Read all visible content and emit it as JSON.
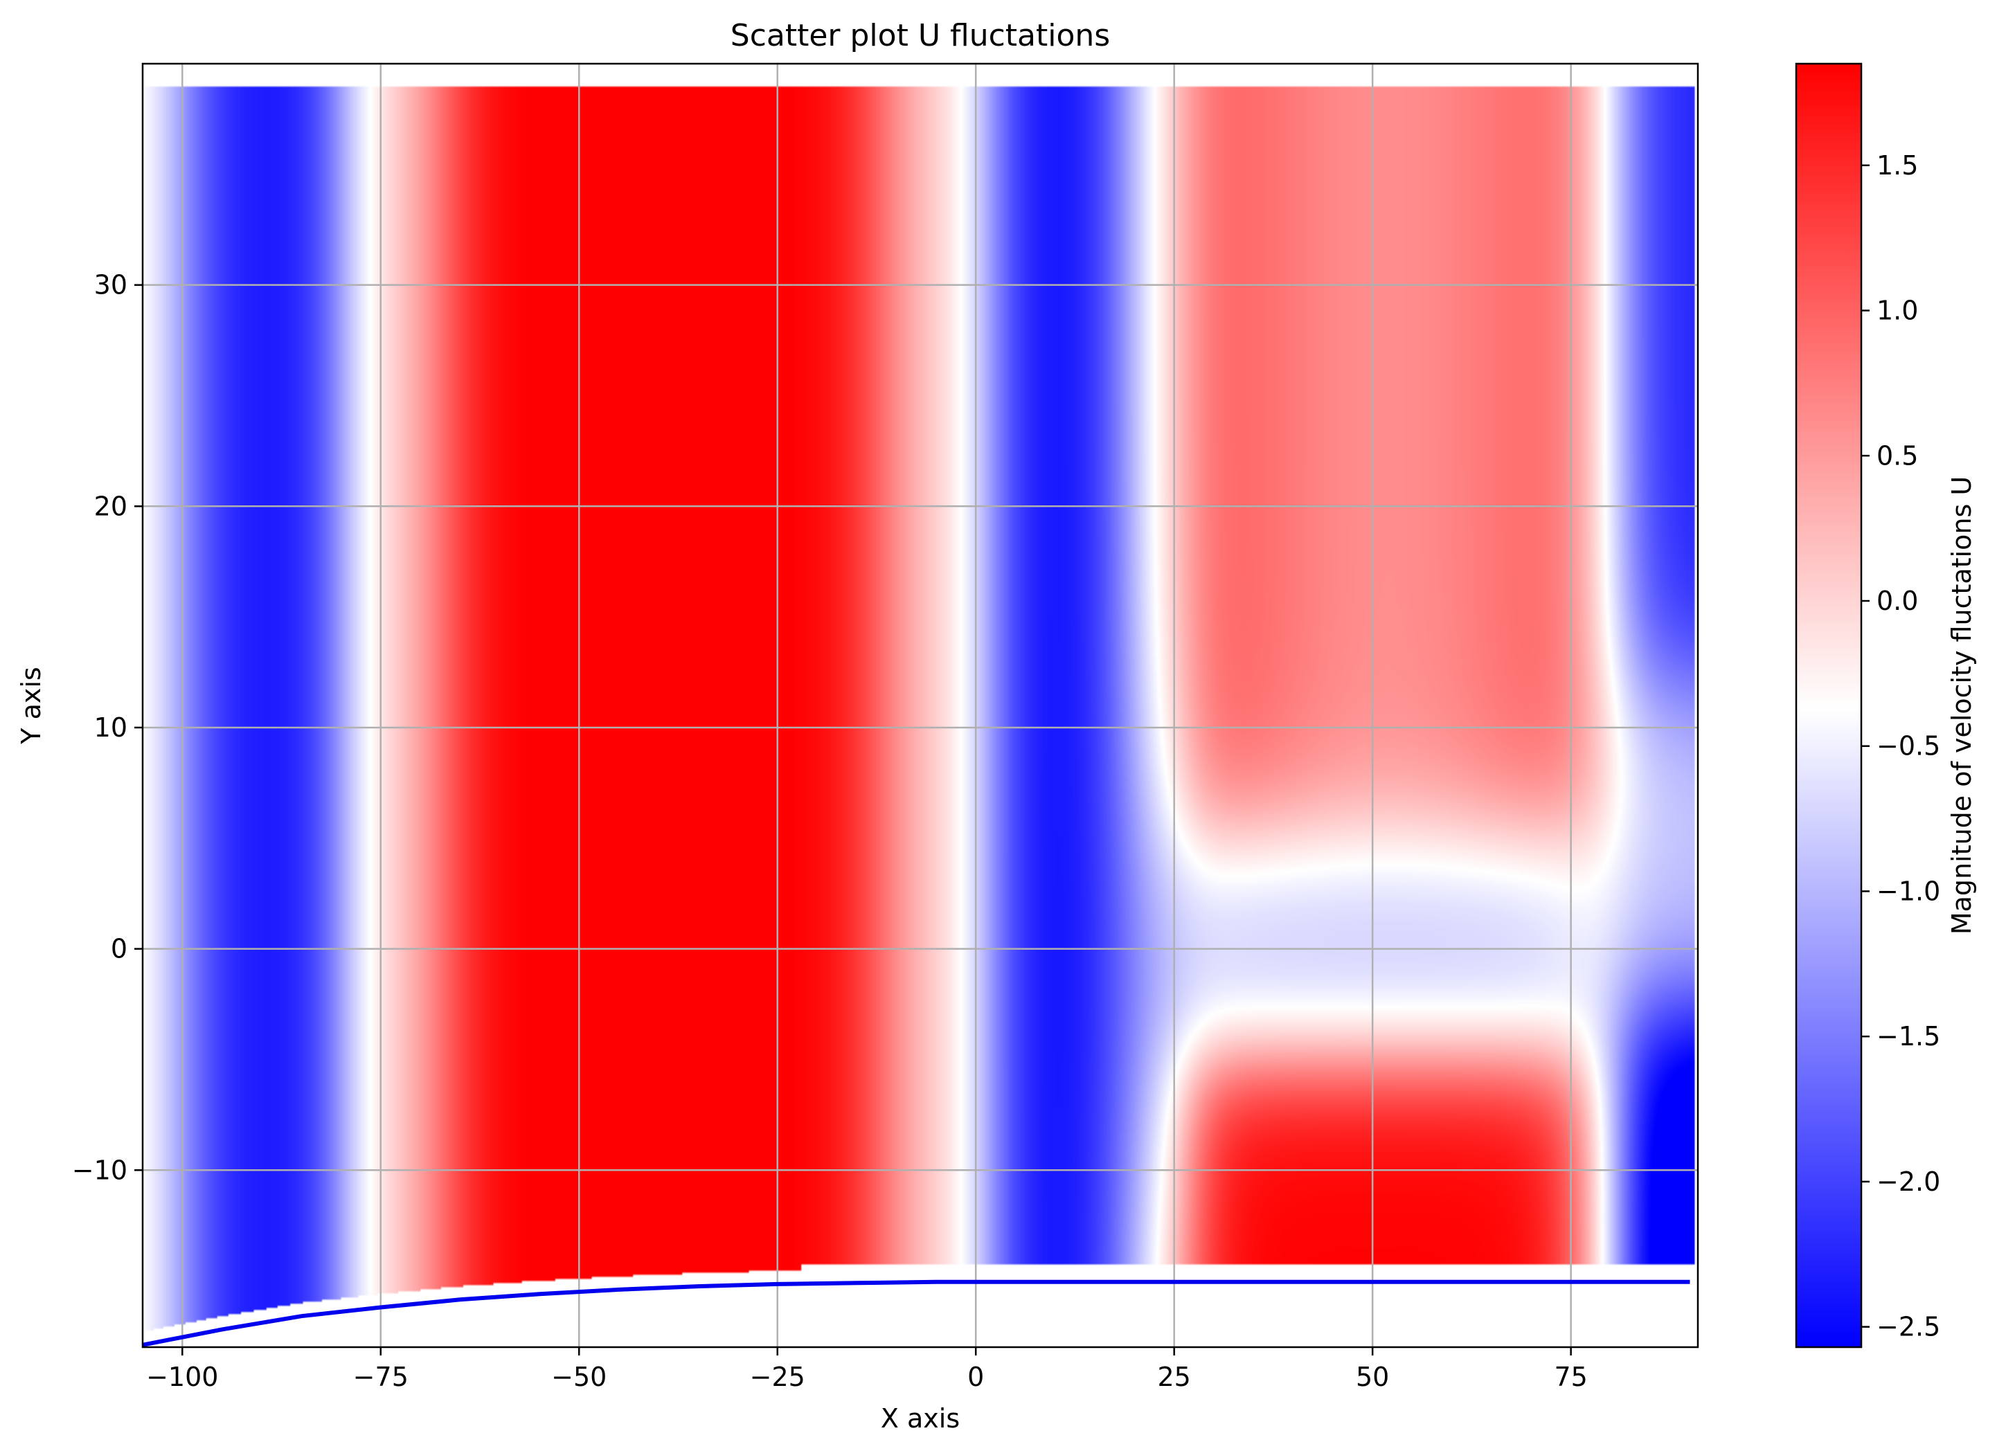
{
  "chart_data": {
    "type": "heatmap",
    "title": "Scatter plot U fluctations",
    "xlabel": "X axis",
    "ylabel": "Y axis",
    "xlim": [
      -105,
      91
    ],
    "ylim": [
      -18,
      40
    ],
    "x_ticks": [
      -100,
      -75,
      -50,
      -25,
      0,
      25,
      50,
      75
    ],
    "y_ticks": [
      -10,
      0,
      10,
      20,
      30
    ],
    "x_tick_labels": [
      "−100",
      "−75",
      "−50",
      "−25",
      "0",
      "25",
      "50",
      "75"
    ],
    "y_tick_labels": [
      "−10",
      "0",
      "10",
      "20",
      "30"
    ],
    "grid": true,
    "colormap": "bwr",
    "colorbar": {
      "label": "Magnitude of velocity fluctations U",
      "range": [
        -2.57,
        1.85
      ],
      "ticks": [
        -2.5,
        -2.0,
        -1.5,
        -1.0,
        -0.5,
        0.0,
        0.5,
        1.0,
        1.5
      ],
      "tick_labels": [
        "−2.5",
        "−2.0",
        "−1.5",
        "−1.0",
        "−0.5",
        "0.0",
        "0.5",
        "1.0",
        "1.5"
      ]
    },
    "field_summary": [
      {
        "region": "x -100 to -78",
        "value": -2.4
      },
      {
        "region": "x -65 to -10",
        "value": 1.8
      },
      {
        "region": "x 3 to 18",
        "value": -2.5
      },
      {
        "region": "x 28 to 75, y 6 to 39",
        "value": 1.5
      },
      {
        "region": "x 28 to 75, y -14 to -5",
        "value": 1.8
      },
      {
        "region": "x 25 to 85, y -2 to 3",
        "value": -0.9
      },
      {
        "region": "x 82 to 91",
        "value": -2.4
      }
    ],
    "wall_curve": {
      "x": [
        -105,
        -95,
        -85,
        -75,
        -65,
        -55,
        -45,
        -35,
        -25,
        -15,
        -5,
        0,
        25,
        50,
        75,
        90
      ],
      "y": [
        -17.9,
        -17.2,
        -16.6,
        -16.2,
        -15.85,
        -15.6,
        -15.4,
        -15.25,
        -15.15,
        -15.1,
        -15.05,
        -15.05,
        -15.05,
        -15.05,
        -15.05,
        -15.05
      ],
      "color": "#0000ee"
    }
  }
}
